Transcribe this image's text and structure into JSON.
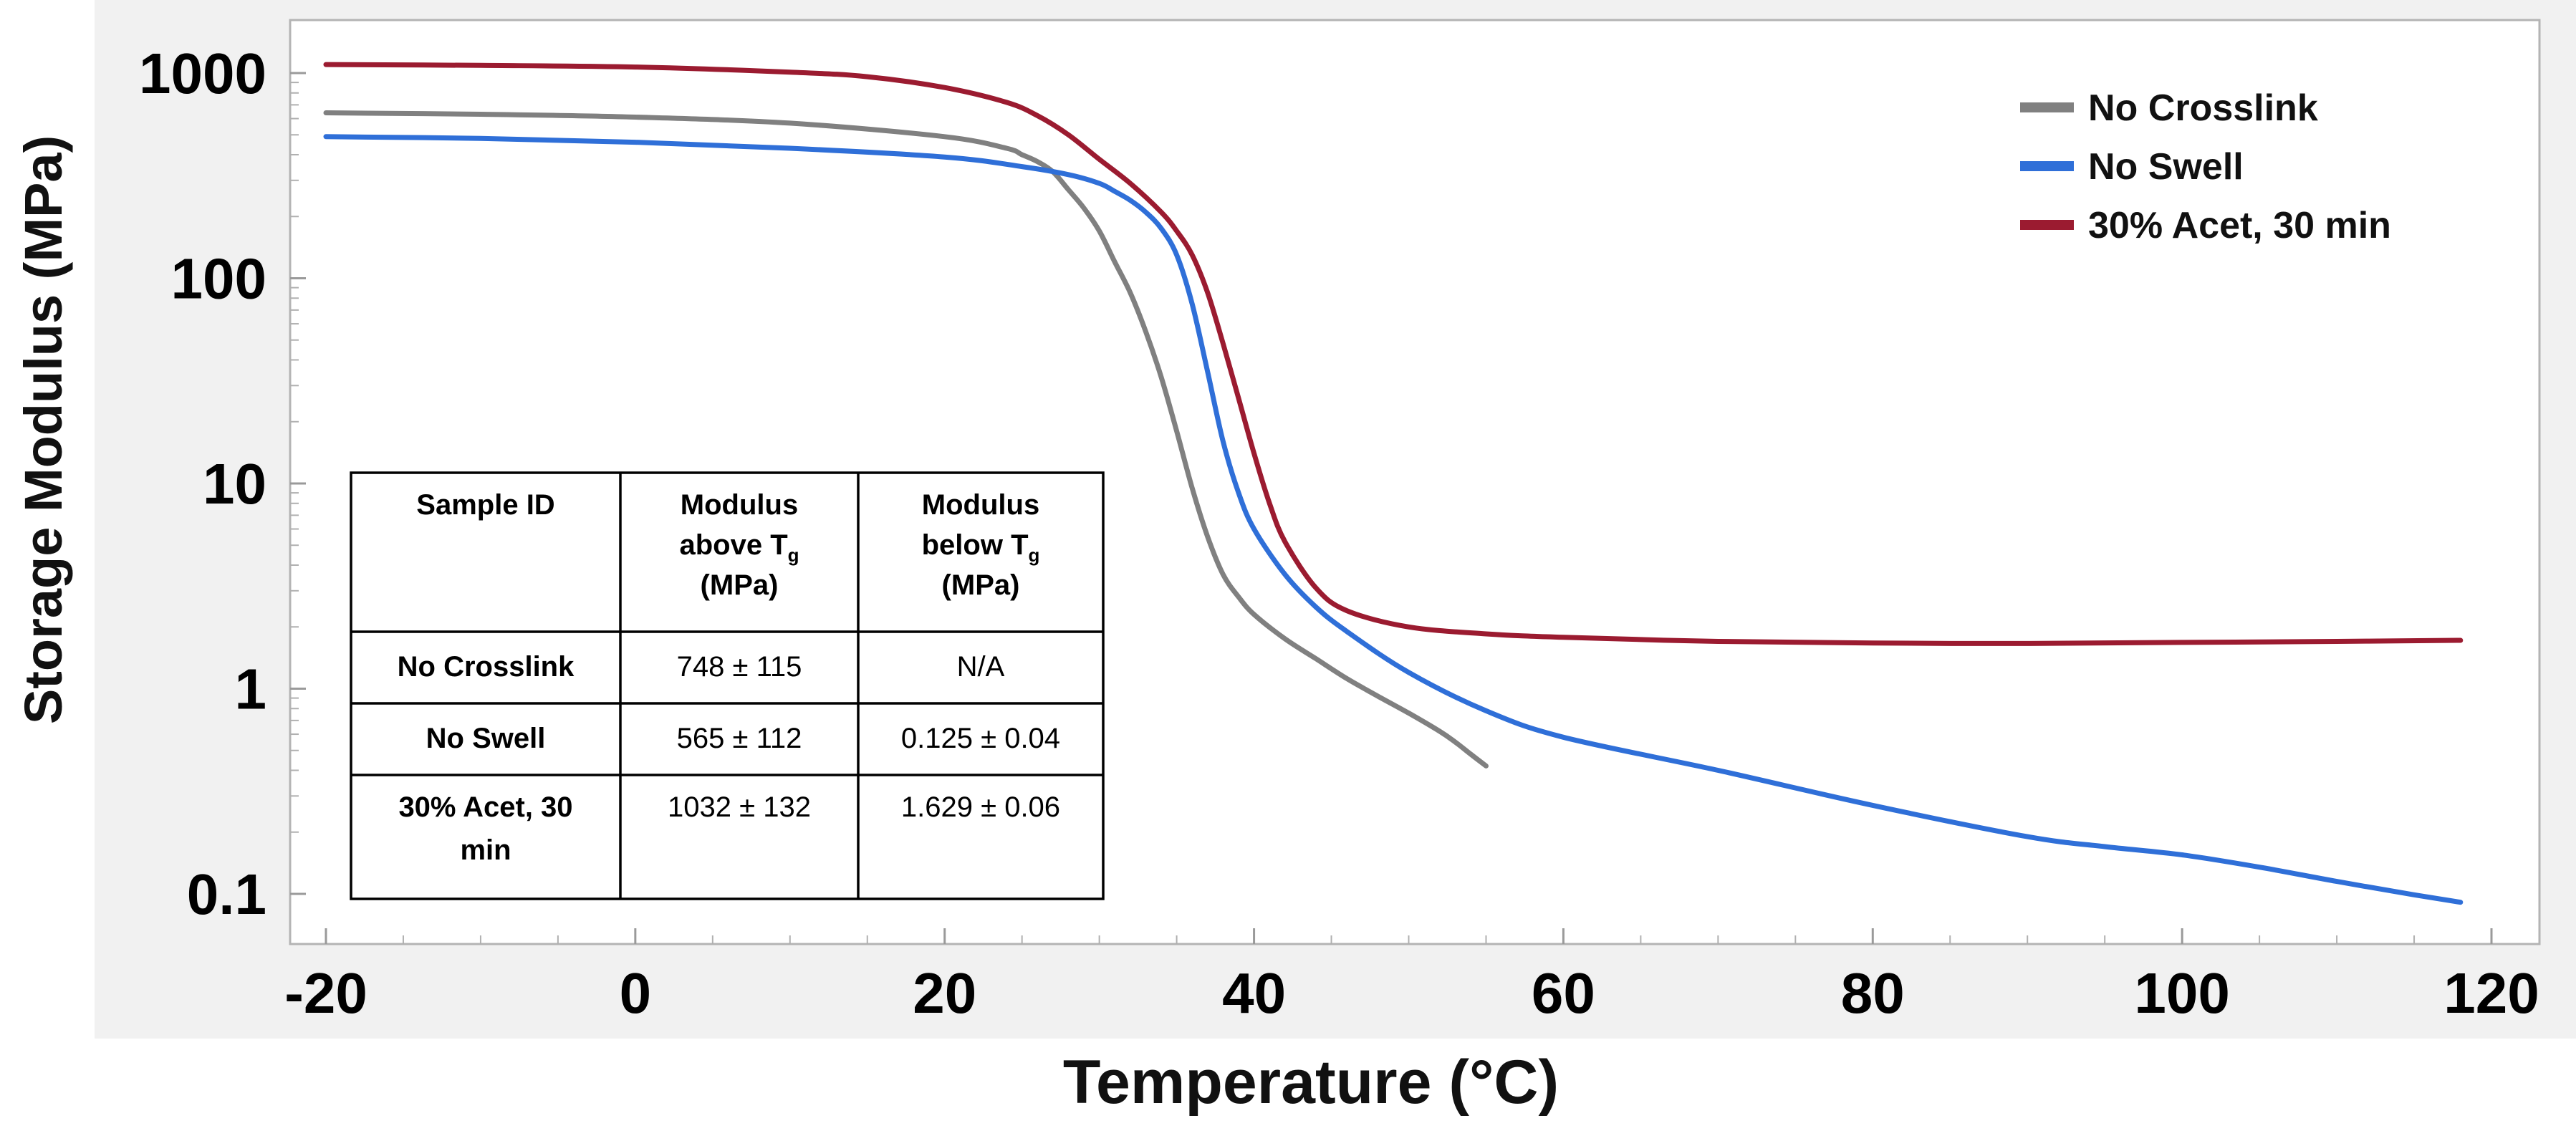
{
  "chart_data": {
    "type": "line",
    "title": "",
    "xlabel": "Temperature (°C)",
    "ylabel": "Storage Modulus (MPa)",
    "xlim": [
      -20,
      120
    ],
    "ylim": [
      0.05,
      1400
    ],
    "yscale": "log",
    "x_ticks": [
      -20,
      0,
      20,
      40,
      60,
      80,
      100,
      120
    ],
    "x_tick_labels": [
      "-20",
      "0",
      "20",
      "40",
      "60",
      "80",
      "100",
      "120"
    ],
    "y_ticks": [
      0.1,
      1,
      10,
      100,
      1000
    ],
    "y_tick_labels": [
      "0.1",
      "1",
      "10",
      "100",
      "1000"
    ],
    "legend_position": "top-right",
    "series": [
      {
        "name": "No Crosslink",
        "color": "#808080",
        "x": [
          -20,
          -10,
          0,
          10,
          20,
          24,
          25,
          26,
          27,
          28,
          29,
          30,
          31,
          32,
          33,
          34,
          35,
          36,
          37,
          38,
          39,
          40,
          42,
          44,
          46,
          48,
          50,
          52,
          53,
          54,
          55
        ],
        "y": [
          640,
          630,
          610,
          570,
          490,
          430,
          400,
          370,
          330,
          270,
          220,
          170,
          120,
          85,
          55,
          33,
          18,
          9.5,
          5.5,
          3.6,
          2.8,
          2.3,
          1.75,
          1.4,
          1.12,
          0.92,
          0.76,
          0.62,
          0.55,
          0.48,
          0.42
        ]
      },
      {
        "name": "No Swell",
        "color": "#2f6fd8",
        "x": [
          -20,
          -10,
          0,
          10,
          20,
          25,
          28,
          30,
          31,
          32,
          33,
          34,
          35,
          36,
          37,
          38,
          39,
          40,
          42,
          44,
          46,
          50,
          55,
          60,
          70,
          80,
          90,
          95,
          100,
          105,
          110,
          115,
          118
        ],
        "y": [
          490,
          480,
          460,
          430,
          390,
          350,
          320,
          290,
          265,
          240,
          210,
          175,
          130,
          75,
          35,
          16,
          9,
          6,
          3.6,
          2.5,
          1.9,
          1.2,
          0.78,
          0.58,
          0.4,
          0.27,
          0.19,
          0.17,
          0.155,
          0.135,
          0.115,
          0.099,
          0.091
        ]
      },
      {
        "name": "30% Acet, 30 min",
        "color": "#9b1b30",
        "x": [
          -20,
          -10,
          0,
          10,
          15,
          20,
          24,
          26,
          28,
          30,
          32,
          34,
          35,
          36,
          37,
          38,
          39,
          40,
          41,
          42,
          44,
          46,
          50,
          55,
          60,
          70,
          80,
          90,
          100,
          110,
          118
        ],
        "y": [
          1100,
          1090,
          1070,
          1010,
          960,
          850,
          720,
          620,
          500,
          380,
          290,
          210,
          170,
          130,
          85,
          48,
          26,
          14,
          8,
          5.2,
          3.1,
          2.4,
          2.0,
          1.85,
          1.78,
          1.7,
          1.67,
          1.66,
          1.68,
          1.7,
          1.72
        ]
      }
    ],
    "table": {
      "headers": [
        "Sample ID",
        "Modulus above Tg (MPa)",
        "Modulus below Tg (MPa)"
      ],
      "rows": [
        [
          "No Crosslink",
          "748 ± 115",
          "N/A"
        ],
        [
          "No Swell",
          "565 ± 112",
          "0.125 ± 0.04"
        ],
        [
          "30% Acet, 30 min",
          "1032 ± 132",
          "1.629 ± 0.06"
        ]
      ]
    }
  },
  "table_text": {
    "h1": "Sample ID",
    "h2_a": "Modulus",
    "h2_b": "above T",
    "h2_sub": "g",
    "h2_c": "(MPa)",
    "h3_a": "Modulus",
    "h3_b": "below T",
    "h3_sub": "g",
    "h3_c": "(MPa)",
    "r1_name": "No Crosslink",
    "r1_above": "748 ± 115",
    "r1_below": "N/A",
    "r2_name": "No Swell",
    "r2_above": "565 ± 112",
    "r2_below": "0.125 ± 0.04",
    "r3_name_a": "30% Acet, 30",
    "r3_name_b": "min",
    "r3_above": "1032 ± 132",
    "r3_below": "1.629 ± 0.06"
  }
}
